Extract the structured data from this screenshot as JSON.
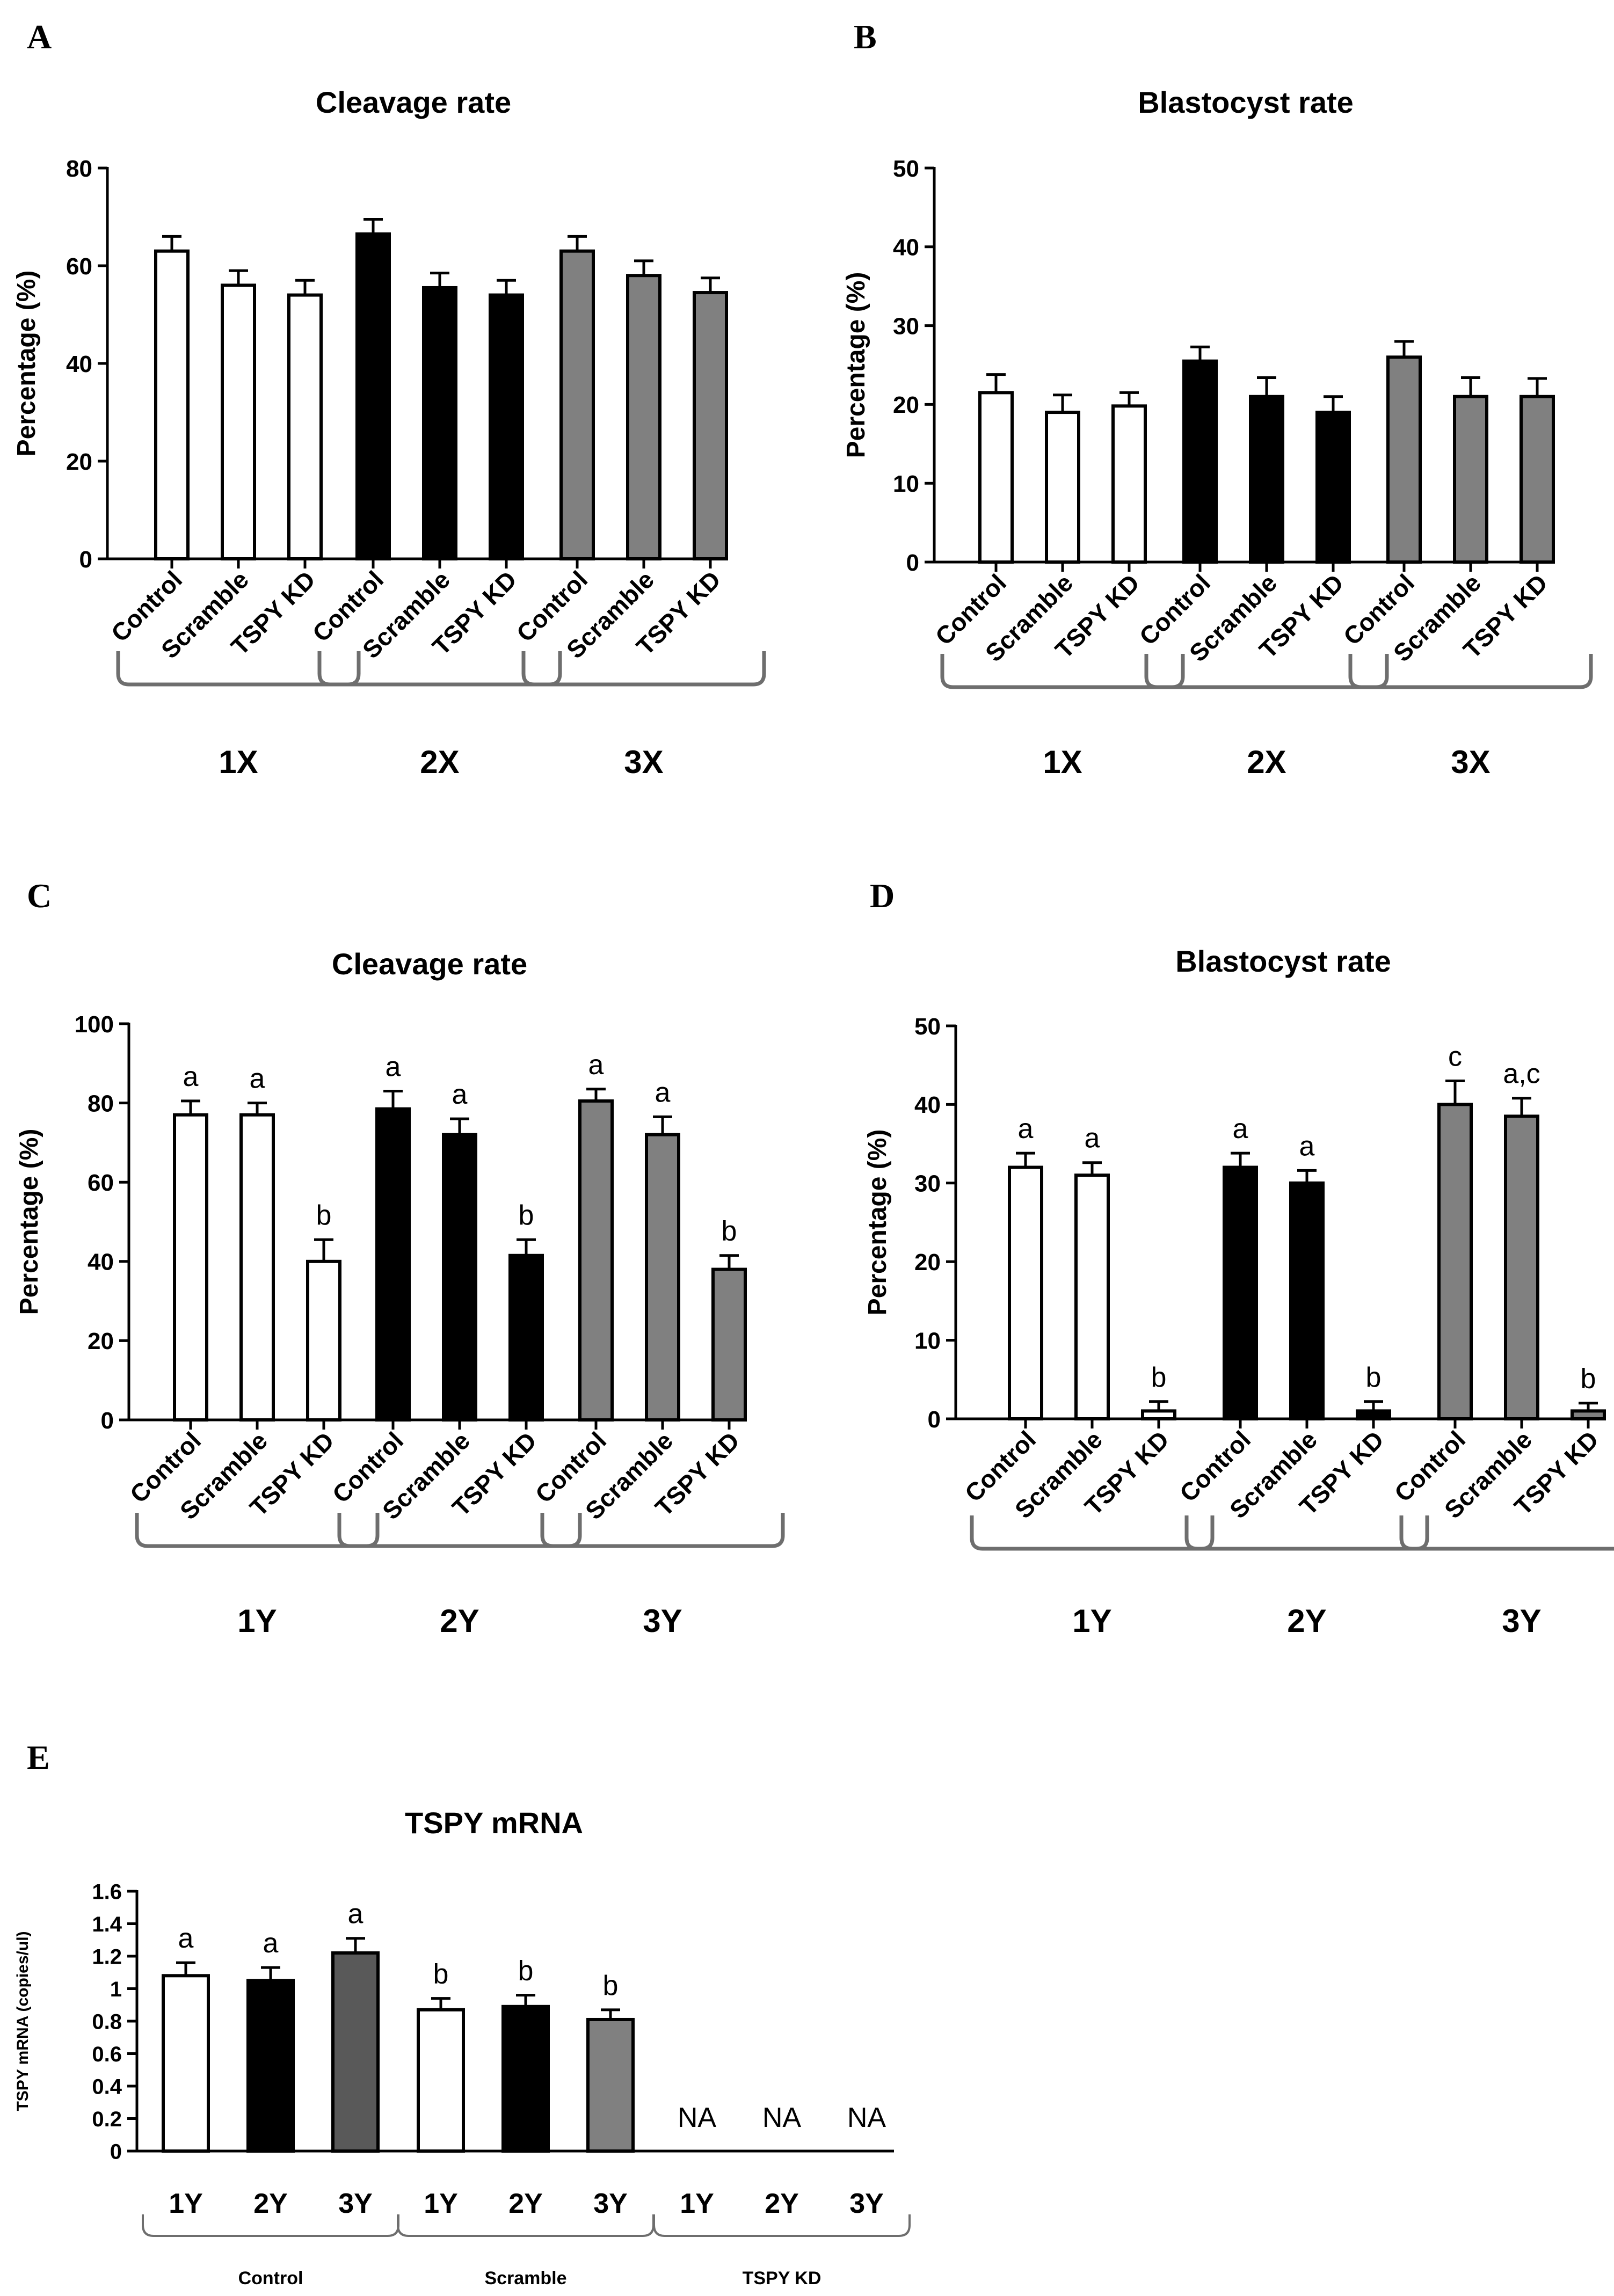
{
  "figure_colors": {
    "white": "#ffffff",
    "black": "#000000",
    "grey": "#808080",
    "dark_grey": "#595959",
    "bracket": "#6e6e6e"
  },
  "chart_data": [
    {
      "panel": "A",
      "type": "bar",
      "title": "Cleavage rate",
      "ylabel": "Percentage (%)",
      "xlabel": "",
      "ylim": [
        0,
        80
      ],
      "yticks": [
        "0",
        "20",
        "40",
        "60",
        "80"
      ],
      "grid": false,
      "groups": [
        {
          "label": "1X",
          "fill": "#ffffff",
          "categories": [
            "Control",
            "Scramble",
            "TSPY KD"
          ],
          "values": [
            63,
            56,
            54
          ],
          "errors": [
            3,
            3,
            3
          ],
          "letters": [
            "",
            "",
            ""
          ]
        },
        {
          "label": "2X",
          "fill": "#000000",
          "categories": [
            "Control",
            "Scramble",
            "TSPY KD"
          ],
          "values": [
            66.5,
            55.5,
            54
          ],
          "errors": [
            3,
            3,
            3
          ],
          "letters": [
            "",
            "",
            ""
          ]
        },
        {
          "label": "3X",
          "fill": "#808080",
          "categories": [
            "Control",
            "Scramble",
            "TSPY KD"
          ],
          "values": [
            63,
            58,
            54.5
          ],
          "errors": [
            3,
            3,
            3
          ],
          "letters": [
            "",
            "",
            ""
          ]
        }
      ]
    },
    {
      "panel": "B",
      "type": "bar",
      "title": "Blastocyst rate",
      "ylabel": "Percentage (%)",
      "xlabel": "",
      "ylim": [
        0,
        50
      ],
      "yticks": [
        "0",
        "10",
        "20",
        "30",
        "40",
        "50"
      ],
      "grid": false,
      "groups": [
        {
          "label": "1X",
          "fill": "#ffffff",
          "categories": [
            "Control",
            "Scramble",
            "TSPY KD"
          ],
          "values": [
            21.5,
            19,
            19.8
          ],
          "errors": [
            2.3,
            2.2,
            1.7
          ],
          "letters": [
            "",
            "",
            ""
          ]
        },
        {
          "label": "2X",
          "fill": "#000000",
          "categories": [
            "Control",
            "Scramble",
            "TSPY KD"
          ],
          "values": [
            25.5,
            21,
            19
          ],
          "errors": [
            1.8,
            2.4,
            2
          ],
          "letters": [
            "",
            "",
            ""
          ]
        },
        {
          "label": "3X",
          "fill": "#808080",
          "categories": [
            "Control",
            "Scramble",
            "TSPY KD"
          ],
          "values": [
            26,
            21,
            21
          ],
          "errors": [
            2,
            2.4,
            2.3
          ],
          "letters": [
            "",
            "",
            ""
          ]
        }
      ]
    },
    {
      "panel": "C",
      "type": "bar",
      "title": "Cleavage rate",
      "ylabel": "Percentage (%)",
      "xlabel": "",
      "ylim": [
        0,
        100
      ],
      "yticks": [
        "0",
        "20",
        "40",
        "60",
        "80",
        "100"
      ],
      "grid": false,
      "groups": [
        {
          "label": "1Y",
          "fill": "#ffffff",
          "categories": [
            "Control",
            "Scramble",
            "TSPY KD"
          ],
          "values": [
            77,
            77,
            40
          ],
          "errors": [
            3.5,
            3,
            5.5
          ],
          "letters": [
            "a",
            "a",
            "b"
          ]
        },
        {
          "label": "2Y",
          "fill": "#000000",
          "categories": [
            "Control",
            "Scramble",
            "TSPY KD"
          ],
          "values": [
            78.5,
            72,
            41.5
          ],
          "errors": [
            4.5,
            4,
            4
          ],
          "letters": [
            "a",
            "a",
            "b"
          ]
        },
        {
          "label": "3Y",
          "fill": "#808080",
          "categories": [
            "Control",
            "Scramble",
            "TSPY KD"
          ],
          "values": [
            80.5,
            72,
            38
          ],
          "errors": [
            3,
            4.5,
            3.5
          ],
          "letters": [
            "a",
            "a",
            "b"
          ]
        }
      ]
    },
    {
      "panel": "D",
      "type": "bar",
      "title": "Blastocyst rate",
      "ylabel": "Percentage (%)",
      "xlabel": "",
      "ylim": [
        0,
        50
      ],
      "yticks": [
        "0",
        "10",
        "20",
        "30",
        "40",
        "50"
      ],
      "grid": false,
      "groups": [
        {
          "label": "1Y",
          "fill": "#ffffff",
          "categories": [
            "Control",
            "Scramble",
            "TSPY KD"
          ],
          "values": [
            32,
            31,
            1
          ],
          "errors": [
            1.8,
            1.6,
            1.2
          ],
          "letters": [
            "a",
            "a",
            "b"
          ]
        },
        {
          "label": "2Y",
          "fill": "#000000",
          "categories": [
            "Control",
            "Scramble",
            "TSPY KD"
          ],
          "values": [
            32,
            30,
            1
          ],
          "errors": [
            1.8,
            1.6,
            1.2
          ],
          "letters": [
            "a",
            "a",
            "b"
          ]
        },
        {
          "label": "3Y",
          "fill": "#808080",
          "categories": [
            "Control",
            "Scramble",
            "TSPY KD"
          ],
          "values": [
            40,
            38.5,
            1
          ],
          "errors": [
            3,
            2.3,
            1
          ],
          "letters": [
            "c",
            "a,c",
            "b"
          ]
        }
      ]
    },
    {
      "panel": "E",
      "type": "bar",
      "title": "TSPY mRNA",
      "ylabel": "TSPY mRNA (copies/ul)",
      "xlabel": "",
      "ylim": [
        0,
        1.6
      ],
      "yticks": [
        "0",
        "0.2",
        "0.4",
        "0.6",
        "0.8",
        "1",
        "1.2",
        "1.4",
        "1.6"
      ],
      "grid": false,
      "groups": [
        {
          "label": "Control",
          "categories": [
            "1Y",
            "2Y",
            "3Y"
          ],
          "fills": [
            "#ffffff",
            "#000000",
            "#595959"
          ],
          "values": [
            1.08,
            1.05,
            1.22
          ],
          "errors": [
            0.08,
            0.08,
            0.09
          ],
          "letters": [
            "a",
            "a",
            "a"
          ]
        },
        {
          "label": "Scramble",
          "categories": [
            "1Y",
            "2Y",
            "3Y"
          ],
          "fills": [
            "#ffffff",
            "#000000",
            "#808080"
          ],
          "values": [
            0.87,
            0.89,
            0.81
          ],
          "errors": [
            0.07,
            0.07,
            0.06
          ],
          "letters": [
            "b",
            "b",
            "b"
          ]
        },
        {
          "label": "TSPY KD",
          "categories": [
            "1Y",
            "2Y",
            "3Y"
          ],
          "fills": [
            "#ffffff",
            "#000000",
            "#808080"
          ],
          "values": [
            null,
            null,
            null
          ],
          "errors": [
            null,
            null,
            null
          ],
          "letters": [
            "NA",
            "NA",
            "NA"
          ]
        }
      ]
    }
  ]
}
